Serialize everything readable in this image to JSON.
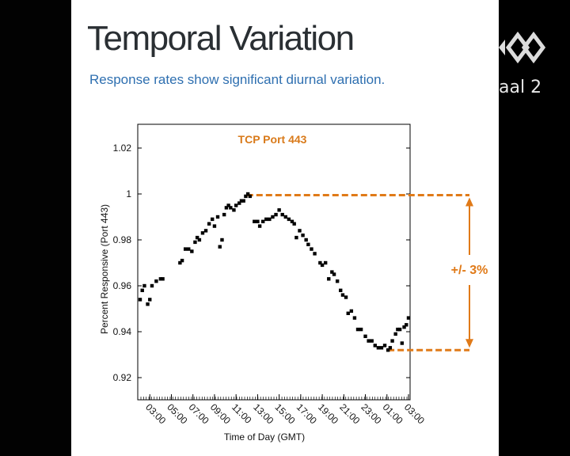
{
  "slide": {
    "title": "Temporal Variation",
    "subtitle": "Response rates show significant diurnal variation.",
    "logo_text": "aal 2"
  },
  "colors": {
    "title": "#2a2f33",
    "subtitle": "#2e6fb0",
    "annotation": "#e07a18",
    "markers": "#000000"
  },
  "chart_data": {
    "type": "scatter",
    "title": "TCP Port 443",
    "xlabel": "Time of Day (GMT)",
    "ylabel": "Percent Responsive  (Port 443)",
    "ylim": [
      0.92,
      1.03
    ],
    "yticks": [
      "0.92",
      "0.94",
      "0.96",
      "0.98",
      "1",
      "1.02"
    ],
    "xticks": [
      "03:00",
      "05:00",
      "07:00",
      "09:00",
      "11:00",
      "13:00",
      "15:00",
      "17:00",
      "19:00",
      "21:00",
      "23:00",
      "01:00",
      "03:00"
    ],
    "x_unit": "hours since 02:00 GMT",
    "xlim": [
      0,
      25
    ],
    "annotation": "+/- 3%",
    "reference_lines": [
      {
        "label": "max",
        "y": 0.9995
      },
      {
        "label": "min",
        "y": 0.932
      }
    ],
    "points": [
      [
        0.1,
        0.954
      ],
      [
        0.3,
        0.958
      ],
      [
        0.5,
        0.96
      ],
      [
        0.8,
        0.952
      ],
      [
        1.0,
        0.954
      ],
      [
        1.2,
        0.96
      ],
      [
        1.6,
        0.962
      ],
      [
        2.0,
        0.963
      ],
      [
        2.2,
        0.963
      ],
      [
        3.8,
        0.97
      ],
      [
        4.0,
        0.971
      ],
      [
        4.3,
        0.976
      ],
      [
        4.6,
        0.976
      ],
      [
        4.9,
        0.975
      ],
      [
        5.2,
        0.979
      ],
      [
        5.4,
        0.981
      ],
      [
        5.6,
        0.98
      ],
      [
        5.9,
        0.983
      ],
      [
        6.2,
        0.984
      ],
      [
        6.5,
        0.987
      ],
      [
        6.8,
        0.989
      ],
      [
        7.0,
        0.986
      ],
      [
        7.3,
        0.99
      ],
      [
        7.5,
        0.977
      ],
      [
        7.7,
        0.98
      ],
      [
        7.9,
        0.991
      ],
      [
        8.1,
        0.994
      ],
      [
        8.3,
        0.995
      ],
      [
        8.5,
        0.994
      ],
      [
        8.8,
        0.993
      ],
      [
        9.0,
        0.995
      ],
      [
        9.3,
        0.996
      ],
      [
        9.5,
        0.997
      ],
      [
        9.7,
        0.997
      ],
      [
        9.9,
        0.999
      ],
      [
        10.1,
        1.0
      ],
      [
        10.3,
        0.999
      ],
      [
        10.7,
        0.988
      ],
      [
        11.0,
        0.988
      ],
      [
        11.2,
        0.986
      ],
      [
        11.5,
        0.988
      ],
      [
        11.8,
        0.989
      ],
      [
        12.1,
        0.989
      ],
      [
        12.4,
        0.99
      ],
      [
        12.7,
        0.991
      ],
      [
        13.0,
        0.993
      ],
      [
        13.3,
        0.991
      ],
      [
        13.6,
        0.99
      ],
      [
        13.9,
        0.989
      ],
      [
        14.2,
        0.988
      ],
      [
        14.4,
        0.987
      ],
      [
        14.6,
        0.981
      ],
      [
        14.9,
        0.984
      ],
      [
        15.2,
        0.982
      ],
      [
        15.5,
        0.98
      ],
      [
        15.7,
        0.978
      ],
      [
        16.0,
        0.976
      ],
      [
        16.3,
        0.974
      ],
      [
        16.8,
        0.97
      ],
      [
        17.0,
        0.969
      ],
      [
        17.3,
        0.97
      ],
      [
        17.6,
        0.963
      ],
      [
        17.9,
        0.966
      ],
      [
        18.1,
        0.965
      ],
      [
        18.4,
        0.962
      ],
      [
        18.7,
        0.958
      ],
      [
        18.9,
        0.956
      ],
      [
        19.2,
        0.955
      ],
      [
        19.4,
        0.948
      ],
      [
        19.7,
        0.949
      ],
      [
        20.0,
        0.946
      ],
      [
        20.3,
        0.941
      ],
      [
        20.6,
        0.941
      ],
      [
        21.0,
        0.938
      ],
      [
        21.3,
        0.936
      ],
      [
        21.6,
        0.936
      ],
      [
        21.9,
        0.934
      ],
      [
        22.2,
        0.933
      ],
      [
        22.5,
        0.933
      ],
      [
        22.8,
        0.934
      ],
      [
        23.1,
        0.932
      ],
      [
        23.3,
        0.933
      ],
      [
        23.5,
        0.936
      ],
      [
        23.8,
        0.939
      ],
      [
        24.0,
        0.941
      ],
      [
        24.2,
        0.941
      ],
      [
        24.4,
        0.935
      ],
      [
        24.6,
        0.942
      ],
      [
        24.8,
        0.943
      ],
      [
        25.0,
        0.946
      ]
    ]
  }
}
